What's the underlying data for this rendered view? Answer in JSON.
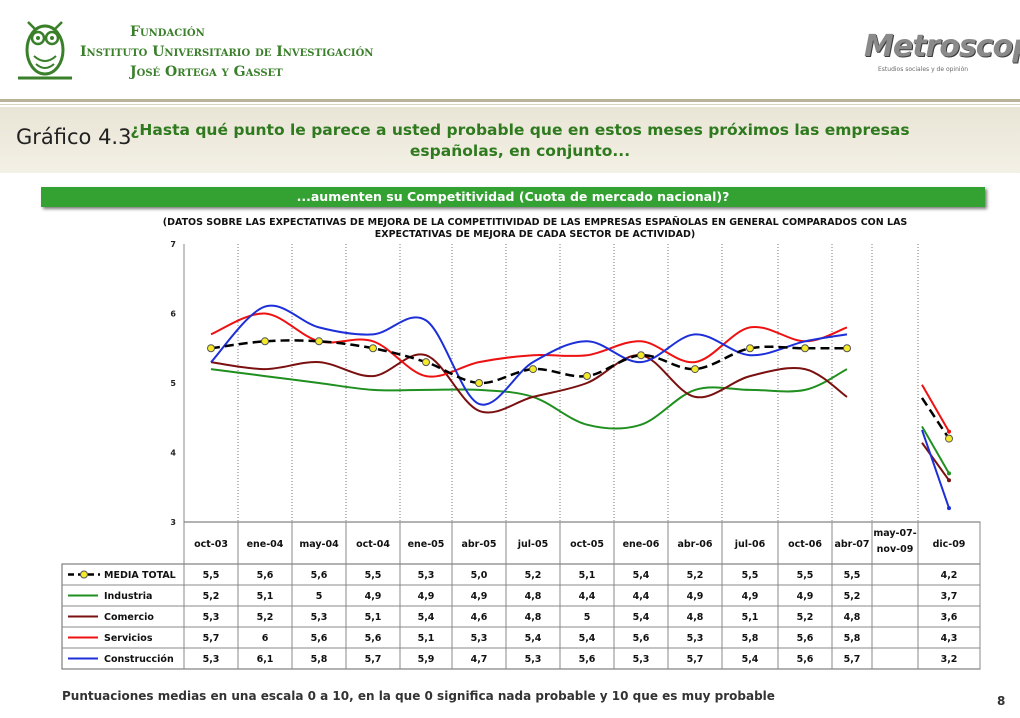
{
  "header": {
    "foundation_lines": [
      "Fundación",
      "Instituto Universitario de Investigación",
      "José Ortega y Gasset"
    ],
    "metroscopia": "Metroscopia",
    "metroscopia_sub": "Estudios sociales y de opinión"
  },
  "figure_label": "Gráfico 4.3",
  "question": "¿Hasta qué punto le parece a usted probable que en estos meses próximos las empresas españolas, en conjunto...",
  "banner": "...aumenten su Competitividad (Cuota de mercado nacional)?",
  "subtitle": "(DATOS SOBRE LAS EXPECTATIVAS DE MEJORA DE LA COMPETITIVIDAD DE LAS EMPRESAS ESPAÑOLAS EN GENERAL COMPARADOS CON LAS EXPECTATIVAS DE MEJORA DE CADA SECTOR DE ACTIVIDAD)",
  "footer": "Puntuaciones medias en una escala 0 a 10, en la que 0 significa nada probable y 10 que es muy probable",
  "page_number": "8",
  "chart_data": {
    "type": "line",
    "categories": [
      "oct-03",
      "ene-04",
      "may-04",
      "oct-04",
      "ene-05",
      "abr-05",
      "jul-05",
      "oct-05",
      "ene-06",
      "abr-06",
      "jul-06",
      "oct-06",
      "abr-07",
      "may-07-\nnov-09",
      "dic-09"
    ],
    "ylim": [
      3,
      7
    ],
    "yticks": [
      "3",
      "4",
      "5",
      "6",
      "7"
    ],
    "series": [
      {
        "name": "MEDIA TOTAL",
        "color": "#000000",
        "dashed": true,
        "markers": true,
        "values": [
          5.5,
          5.6,
          5.6,
          5.5,
          5.3,
          5.0,
          5.2,
          5.1,
          5.4,
          5.2,
          5.5,
          5.5,
          5.5,
          null,
          4.2
        ],
        "labels": [
          "5,5",
          "5,6",
          "5,6",
          "5,5",
          "5,3",
          "5,0",
          "5,2",
          "5,1",
          "5,4",
          "5,2",
          "5,5",
          "5,5",
          "5,5",
          "",
          "4,2"
        ]
      },
      {
        "name": "Industria",
        "color": "#1f8f1f",
        "values": [
          5.2,
          5.1,
          5,
          4.9,
          4.9,
          4.9,
          4.8,
          4.4,
          4.4,
          4.9,
          4.9,
          4.9,
          5.2,
          null,
          3.7
        ],
        "labels": [
          "5,2",
          "5,1",
          "5",
          "4,9",
          "4,9",
          "4,9",
          "4,8",
          "4,4",
          "4,4",
          "4,9",
          "4,9",
          "4,9",
          "5,2",
          "",
          "3,7"
        ]
      },
      {
        "name": "Comercio",
        "color": "#7a1010",
        "values": [
          5.3,
          5.2,
          5.3,
          5.1,
          5.4,
          4.6,
          4.8,
          5,
          5.4,
          4.8,
          5.1,
          5.2,
          4.8,
          null,
          3.6
        ],
        "labels": [
          "5,3",
          "5,2",
          "5,3",
          "5,1",
          "5,4",
          "4,6",
          "4,8",
          "5",
          "5,4",
          "4,8",
          "5,1",
          "5,2",
          "4,8",
          "",
          "3,6"
        ]
      },
      {
        "name": "Servicios",
        "color": "#ee1111",
        "values": [
          5.7,
          6,
          5.6,
          5.6,
          5.1,
          5.3,
          5.4,
          5.4,
          5.6,
          5.3,
          5.8,
          5.6,
          5.8,
          null,
          4.3
        ],
        "labels": [
          "5,7",
          "6",
          "5,6",
          "5,6",
          "5,1",
          "5,3",
          "5,4",
          "5,4",
          "5,6",
          "5,3",
          "5,8",
          "5,6",
          "5,8",
          "",
          "4,3"
        ]
      },
      {
        "name": "Construcción",
        "color": "#1c2fd8",
        "values": [
          5.3,
          6.1,
          5.8,
          5.7,
          5.9,
          4.7,
          5.3,
          5.6,
          5.3,
          5.7,
          5.4,
          5.6,
          5.7,
          null,
          3.2
        ],
        "labels": [
          "5,3",
          "6,1",
          "5,8",
          "5,7",
          "5,9",
          "4,7",
          "5,3",
          "5,6",
          "5,3",
          "5,7",
          "5,4",
          "5,6",
          "5,7",
          "",
          "3,2"
        ]
      }
    ]
  }
}
